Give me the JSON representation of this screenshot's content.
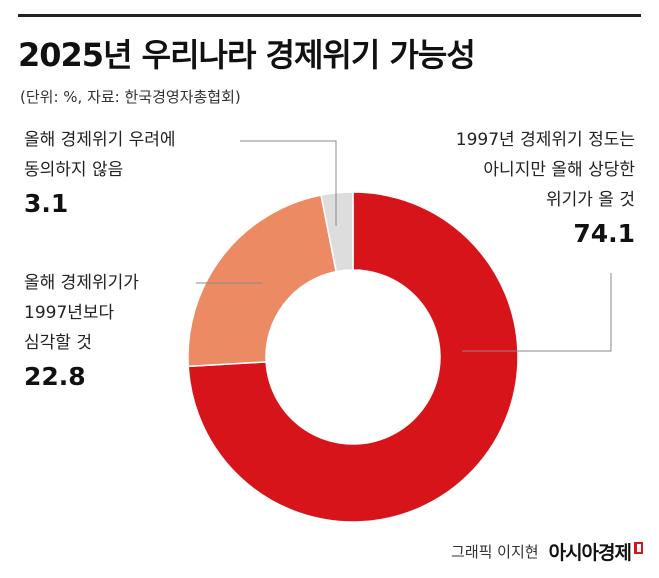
{
  "header": {
    "title": "2025년 우리나라 경제위기 가능성",
    "subtitle": "(단위: %, 자료: 한국경영자총협회)"
  },
  "labels": [
    {
      "text_lines": [
        "1997년 경제위기 정도는",
        "아니지만 올해 상당한",
        "위기가 올 것"
      ],
      "value": "74.1"
    },
    {
      "text_lines": [
        "올해 경제위기가",
        "1997년보다",
        "심각할 것"
      ],
      "value": "22.8"
    },
    {
      "text_lines": [
        "올해 경제위기 우려에",
        "동의하지 않음"
      ],
      "value": "3.1"
    }
  ],
  "credit": {
    "byline": "그래픽 이지현",
    "brand": "아시아경제"
  },
  "colors": {
    "series_1": "#d7141a",
    "series_2": "#ec8b63",
    "series_3": "#dddddd",
    "leader_line": "#888888"
  },
  "chart_data": {
    "type": "pie",
    "donut": true,
    "title": "2025년 우리나라 경제위기 가능성",
    "unit": "%",
    "categories": [
      "1997년 경제위기 정도는 아니지만 올해 상당한 위기가 올 것",
      "올해 경제위기가 1997년보다 심각할 것",
      "올해 경제위기 우려에 동의하지 않음"
    ],
    "values": [
      74.1,
      22.8,
      3.1
    ],
    "legend": "none"
  }
}
